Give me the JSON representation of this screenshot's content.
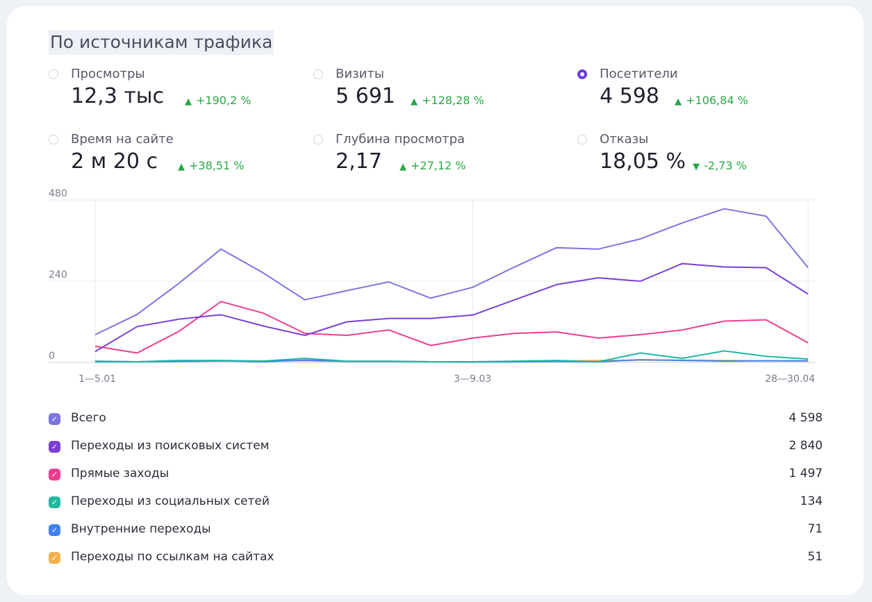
{
  "title": "По источникам трафика",
  "metrics": [
    {
      "label": "Просмотры",
      "value": "12,3 тыс",
      "delta": "+190,2 %",
      "direction": "up",
      "selected": false
    },
    {
      "label": "Визиты",
      "value": "5 691",
      "delta": "+128,28 %",
      "direction": "up",
      "selected": false
    },
    {
      "label": "Посетители",
      "value": "4 598",
      "delta": "+106,84 %",
      "direction": "up",
      "selected": true
    },
    {
      "label": "Время на сайте",
      "value": "2 м 20 с",
      "delta": "+38,51 %",
      "direction": "up",
      "selected": false
    },
    {
      "label": "Глубина просмотра",
      "value": "2,17",
      "delta": "+27,12 %",
      "direction": "up",
      "selected": false
    },
    {
      "label": "Отказы",
      "value": "18,05 %",
      "delta": "-2,73 %",
      "direction": "down",
      "selected": false
    }
  ],
  "colors": {
    "accent": "#6e38e8",
    "positive": "#28a745"
  },
  "chart_data": {
    "type": "line",
    "title": "",
    "xlabel": "",
    "ylabel": "",
    "ylim": [
      0,
      480
    ],
    "y_ticks": [
      0,
      240,
      480
    ],
    "x_tick_labels": [
      "1—5.01",
      "3—9.03",
      "28—30.04"
    ],
    "grid": true,
    "series": [
      {
        "name": "Всего",
        "color": "#7b74e3",
        "values": [
          82,
          142,
          234,
          335,
          265,
          185,
          212,
          238,
          190,
          222,
          282,
          339,
          335,
          365,
          412,
          454,
          432,
          280
        ]
      },
      {
        "name": "Переходы из поисковых систем",
        "color": "#7a3fd8",
        "values": [
          32,
          106,
          128,
          141,
          108,
          80,
          120,
          130,
          130,
          140,
          185,
          230,
          250,
          240,
          292,
          282,
          280,
          202
        ]
      },
      {
        "name": "Прямые заходы",
        "color": "#ee3d8f",
        "values": [
          48,
          28,
          92,
          180,
          146,
          86,
          80,
          96,
          50,
          72,
          86,
          90,
          72,
          82,
          96,
          122,
          126,
          58
        ]
      },
      {
        "name": "Переходы из социальных сетей",
        "color": "#1fb89f",
        "values": [
          4,
          2,
          6,
          6,
          4,
          12,
          4,
          4,
          2,
          2,
          4,
          6,
          2,
          28,
          12,
          34,
          18,
          10
        ]
      },
      {
        "name": "Внутренние переходы",
        "color": "#3e82f0",
        "values": [
          2,
          2,
          3,
          5,
          2,
          7,
          3,
          3,
          2,
          1,
          2,
          3,
          2,
          8,
          6,
          4,
          5,
          5
        ]
      },
      {
        "name": "Переходы по ссылкам на сайтах",
        "color": "#f3b24c",
        "values": [
          3,
          2,
          3,
          4,
          5,
          5,
          3,
          3,
          2,
          2,
          3,
          4,
          6,
          7,
          7,
          6,
          5,
          4
        ]
      }
    ]
  },
  "legend": [
    {
      "name": "Всего",
      "value": "4 598",
      "color": "#7b74e3"
    },
    {
      "name": "Переходы из поисковых систем",
      "value": "2 840",
      "color": "#7a3fd8"
    },
    {
      "name": "Прямые заходы",
      "value": "1 497",
      "color": "#ee3d8f"
    },
    {
      "name": "Переходы из социальных сетей",
      "value": "134",
      "color": "#1fb89f"
    },
    {
      "name": "Внутренние переходы",
      "value": "71",
      "color": "#3e82f0"
    },
    {
      "name": "Переходы по ссылкам на сайтах",
      "value": "51",
      "color": "#f3b24c"
    }
  ]
}
